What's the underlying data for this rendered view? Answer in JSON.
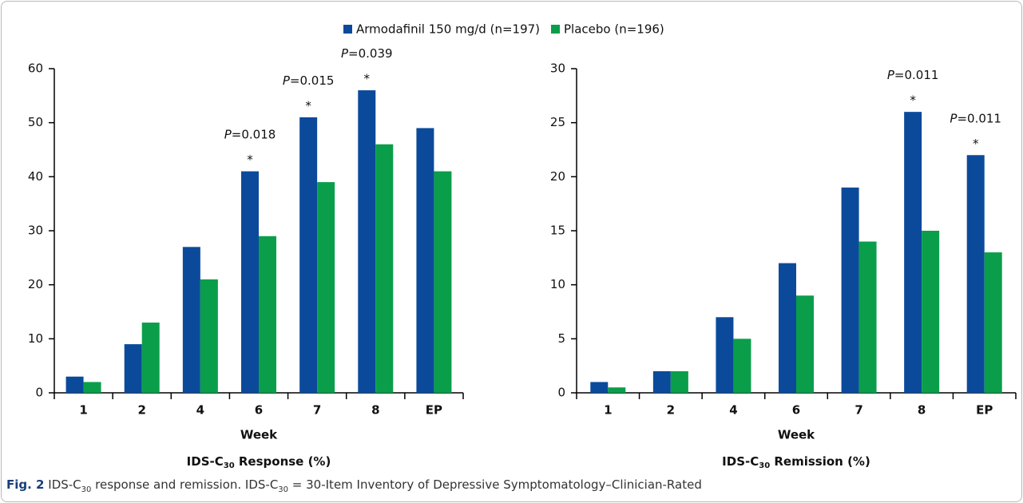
{
  "legend_series": [
    "Armodafinil 150 mg/d (n=197)",
    "Placebo (n=196)"
  ],
  "caption": {
    "label": "Fig. 2",
    "parts": [
      "IDS-C",
      "30",
      " response and remission. IDS-C",
      "30",
      " = 30-Item Inventory of Depressive Symptomatology–Clinician-Rated"
    ]
  },
  "chart_data": [
    {
      "type": "bar",
      "x_label": "Week",
      "subtitle": [
        "IDS-C",
        "30",
        " Response (%)"
      ],
      "categories": [
        "1",
        "2",
        "4",
        "6",
        "7",
        "8",
        "EP"
      ],
      "series": [
        {
          "color": "#0b4a9b",
          "values": [
            3,
            9,
            27,
            41,
            51,
            56,
            49
          ]
        },
        {
          "color": "#0a9e4a",
          "values": [
            2,
            13,
            21,
            29,
            39,
            46,
            41
          ]
        }
      ],
      "annotations": [
        null,
        null,
        null,
        {
          "text": "P=0.018",
          "marker": "*"
        },
        {
          "text": "P=0.015",
          "marker": "*"
        },
        {
          "text": "P=0.039",
          "marker": "*"
        },
        null
      ],
      "ylim": [
        0,
        60
      ],
      "yticks": [
        0,
        10,
        20,
        30,
        40,
        50,
        60
      ],
      "grid": false
    },
    {
      "type": "bar",
      "x_label": "Week",
      "subtitle": [
        "IDS-C",
        "30",
        " Remission (%)"
      ],
      "categories": [
        "1",
        "2",
        "4",
        "6",
        "7",
        "8",
        "EP"
      ],
      "series": [
        {
          "color": "#0b4a9b",
          "values": [
            1,
            2,
            7,
            12,
            19,
            26,
            22
          ]
        },
        {
          "color": "#0a9e4a",
          "values": [
            0.5,
            2,
            5,
            9,
            14,
            15,
            13
          ]
        }
      ],
      "annotations": [
        null,
        null,
        null,
        null,
        null,
        {
          "text": "P=0.011",
          "marker": "*"
        },
        {
          "text": "P=0.011",
          "marker": "*"
        }
      ],
      "ylim": [
        0,
        30
      ],
      "yticks": [
        0,
        5,
        10,
        15,
        20,
        25,
        30
      ],
      "grid": false
    }
  ]
}
